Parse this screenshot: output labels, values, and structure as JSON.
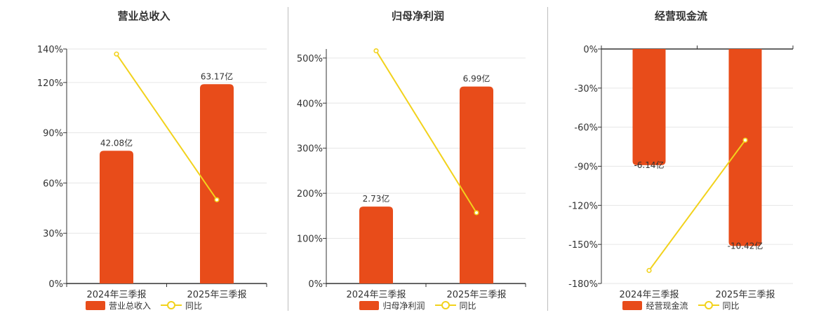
{
  "colors": {
    "bar": "#e84c1a",
    "line": "#f2d21c",
    "grid": "#e6e6e6",
    "axis": "#333333"
  },
  "chart_data": [
    {
      "type": "bar",
      "title": "营业总收入",
      "categories": [
        "2024年三季报",
        "2025年三季报"
      ],
      "bar_labels": [
        "42.08亿",
        "63.17亿"
      ],
      "bar_values": [
        42.08,
        63.17
      ],
      "yoy_values": [
        137,
        50
      ],
      "y_ticks": [
        "0%",
        "30%",
        "60%",
        "90%",
        "120%",
        "140%"
      ],
      "ylim": [
        0,
        140
      ],
      "legend": {
        "bar": "营业总收入",
        "line": "同比"
      }
    },
    {
      "type": "bar",
      "title": "归母净利润",
      "categories": [
        "2024年三季报",
        "2025年三季报"
      ],
      "bar_labels": [
        "2.73亿",
        "6.99亿"
      ],
      "bar_values": [
        2.73,
        6.99
      ],
      "yoy_values": [
        516,
        157
      ],
      "y_ticks": [
        "0%",
        "100%",
        "200%",
        "300%",
        "400%",
        "500%"
      ],
      "ylim": [
        0,
        520
      ],
      "legend": {
        "bar": "归母净利润",
        "line": "同比"
      }
    },
    {
      "type": "bar",
      "title": "经营现金流",
      "categories": [
        "2024年三季报",
        "2025年三季报"
      ],
      "bar_labels": [
        "-6.14亿",
        "-10.42亿"
      ],
      "bar_values": [
        -6.14,
        -10.42
      ],
      "yoy_values": [
        -170,
        -70
      ],
      "y_ticks": [
        "0%",
        "-30%",
        "-60%",
        "-90%",
        "-120%",
        "-150%",
        "-180%"
      ],
      "ylim": [
        -180,
        0
      ],
      "legend": {
        "bar": "经营现金流",
        "line": "同比"
      }
    }
  ]
}
